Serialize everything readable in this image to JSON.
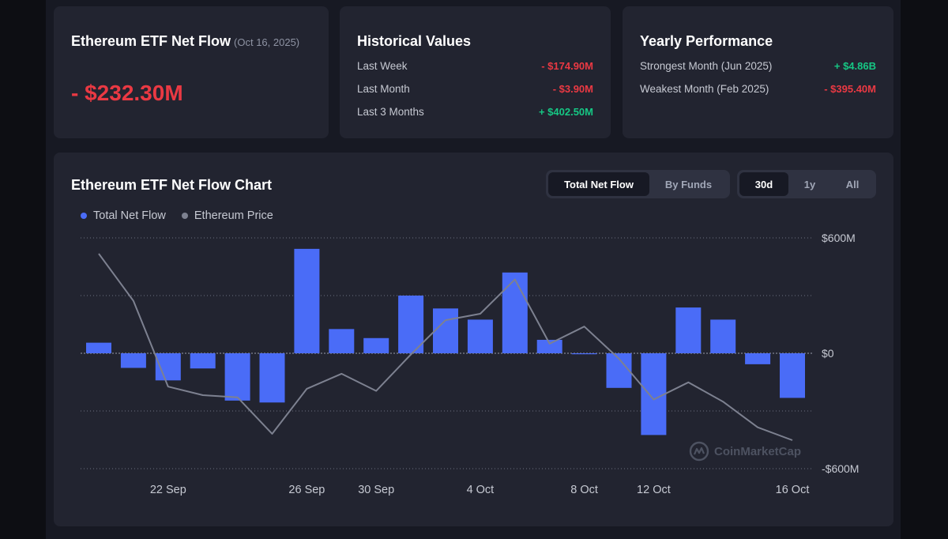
{
  "net_flow_card": {
    "title": "Ethereum ETF Net Flow",
    "date": "(Oct 16, 2025)",
    "value": "- $232.30M"
  },
  "historical": {
    "title": "Historical Values",
    "rows": [
      {
        "label": "Last Week",
        "value": "- $174.90M",
        "sign": "neg"
      },
      {
        "label": "Last Month",
        "value": "- $3.90M",
        "sign": "neg"
      },
      {
        "label": "Last 3 Months",
        "value": "+ $402.50M",
        "sign": "pos"
      }
    ]
  },
  "yearly": {
    "title": "Yearly Performance",
    "rows": [
      {
        "label": "Strongest Month (Jun 2025)",
        "value": "+ $4.86B",
        "sign": "pos"
      },
      {
        "label": "Weakest Month (Feb 2025)",
        "value": "- $395.40M",
        "sign": "neg"
      }
    ]
  },
  "chart_card": {
    "title": "Ethereum ETF Net Flow Chart",
    "view_tabs": [
      "Total Net Flow",
      "By Funds"
    ],
    "range_tabs": [
      "30d",
      "1y",
      "All"
    ],
    "active_view": "Total Net Flow",
    "active_range": "30d",
    "watermark": "CoinMarketCap"
  },
  "colors": {
    "bar": "#4a6cf7",
    "price_line": "#7d8190",
    "negative": "#ea3943",
    "positive": "#16c784"
  },
  "chart_data": {
    "type": "bar",
    "title": "Ethereum ETF Net Flow Chart",
    "legend": [
      "Total Net Flow",
      "Ethereum Price"
    ],
    "legend_position": "top-left",
    "ylim": [
      -600,
      600
    ],
    "y_ticks": [
      "$600M",
      "$0",
      "-$600M"
    ],
    "x_tick_labels": [
      "22 Sep",
      "26 Sep",
      "30 Sep",
      "4 Oct",
      "8 Oct",
      "12 Oct",
      "16 Oct"
    ],
    "x_tick_index": [
      2,
      6,
      8,
      11,
      14,
      16,
      20
    ],
    "series": [
      {
        "name": "Total Net Flow",
        "unit": "$M",
        "values": [
          55,
          -76,
          -141,
          -79,
          -246,
          -256,
          543,
          126,
          79,
          300,
          233,
          175,
          420,
          70,
          -5,
          -180,
          -425,
          238,
          175,
          -57,
          -232
        ]
      },
      {
        "name": "Ethereum Price",
        "unit": "relative",
        "values": [
          83,
          61,
          21,
          17,
          16,
          -1,
          20,
          27,
          19,
          36,
          52,
          55,
          71,
          41,
          49,
          34,
          15,
          23,
          14,
          2,
          -4
        ]
      }
    ]
  }
}
